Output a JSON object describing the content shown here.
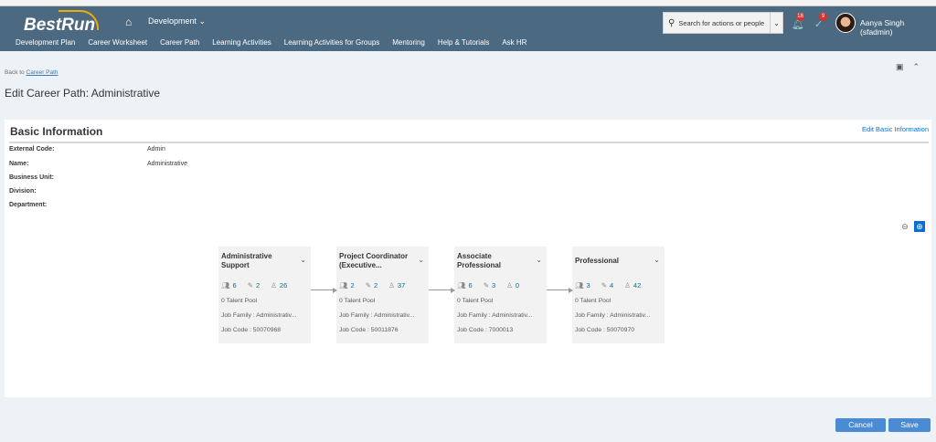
{
  "header": {
    "logo": "BestRun",
    "module": "Development",
    "search_placeholder": "Search for actions or people",
    "notifications": "18",
    "todos": "9",
    "user": "Aanya Singh (sfadmin)"
  },
  "nav": [
    "Development Plan",
    "Career Worksheet",
    "Career Path",
    "Learning Activities",
    "Learning Activities for Groups",
    "Mentoring",
    "Help & Tutorials",
    "Ask HR"
  ],
  "page": {
    "back_prefix": "Back to",
    "back_link": "Career Path",
    "title": "Edit Career Path: Administrative"
  },
  "basic": {
    "heading": "Basic Information",
    "edit_link": "Edit Basic Information",
    "fields": [
      {
        "label": "External Code:",
        "value": "Admin"
      },
      {
        "label": "Name:",
        "value": "Administrative"
      },
      {
        "label": "Business Unit:",
        "value": ""
      },
      {
        "label": "Division:",
        "value": ""
      },
      {
        "label": "Department:",
        "value": ""
      }
    ]
  },
  "cards": [
    {
      "name": "Administrative Support",
      "a": "6",
      "b": "2",
      "c": "26",
      "pool": "0 Talent Pool",
      "family": "Job Family : Administrativ...",
      "code": "Job Code : 50070968"
    },
    {
      "name": "Project Coordinator (Executive...",
      "a": "2",
      "b": "2",
      "c": "37",
      "pool": "0 Talent Pool",
      "family": "Job Family : Administrativ...",
      "code": "Job Code : 50011876"
    },
    {
      "name": "Associate Professional",
      "a": "6",
      "b": "3",
      "c": "0",
      "pool": "0 Talent Pool",
      "family": "Job Family : Administrativ...",
      "code": "Job Code : 7000013"
    },
    {
      "name": "Professional",
      "a": "3",
      "b": "4",
      "c": "42",
      "pool": "0 Talent Pool",
      "family": "Job Family : Administrativ...",
      "code": "Job Code : 50070970"
    }
  ],
  "buttons": {
    "cancel": "Cancel",
    "save": "Save"
  },
  "colors": {
    "shell": "#4b6a82",
    "primary": "#4a8bd4",
    "link": "#0a6ed1"
  }
}
